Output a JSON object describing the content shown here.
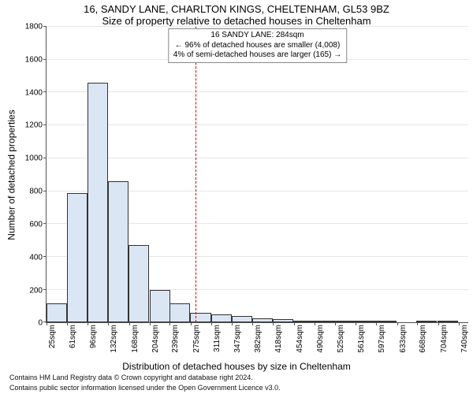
{
  "title1": "16, SANDY LANE, CHARLTON KINGS, CHELTENHAM, GL53 9BZ",
  "title2": "Size of property relative to detached houses in Cheltenham",
  "y_label": "Number of detached properties",
  "x_label": "Distribution of detached houses by size in Cheltenham",
  "footnote1": "Contains HM Land Registry data © Crown copyright and database right 2024.",
  "footnote2": "Contains public sector information licensed under the Open Government Licence v3.0.",
  "annotation": {
    "line1": "16 SANDY LANE: 284sqm",
    "line2": "← 96% of detached houses are smaller (4,008)",
    "line3": "4% of semi-detached houses are larger (165) →"
  },
  "chart": {
    "type": "histogram",
    "ylim": [
      0,
      1800
    ],
    "y_ticks": [
      0,
      200,
      400,
      600,
      800,
      1000,
      1200,
      1400,
      1600,
      1800
    ],
    "x_range_min": 25,
    "x_range_max": 758,
    "x_ticks": [
      25,
      61,
      96,
      132,
      168,
      204,
      239,
      275,
      311,
      347,
      382,
      418,
      454,
      490,
      525,
      561,
      597,
      633,
      668,
      704,
      740
    ],
    "x_tick_suffix": "sqm",
    "bar_color": "#dbe6f4",
    "bar_border": "#333333",
    "grid_color": "#e6e6e6",
    "vline_color": "#cc0000",
    "vline_x": 284,
    "bin_width": 35.7,
    "bins": [
      {
        "start": 25,
        "value": 115
      },
      {
        "start": 61,
        "value": 790
      },
      {
        "start": 96,
        "value": 1460
      },
      {
        "start": 132,
        "value": 860
      },
      {
        "start": 168,
        "value": 470
      },
      {
        "start": 204,
        "value": 200
      },
      {
        "start": 239,
        "value": 115
      },
      {
        "start": 275,
        "value": 60
      },
      {
        "start": 311,
        "value": 50
      },
      {
        "start": 347,
        "value": 40
      },
      {
        "start": 382,
        "value": 25
      },
      {
        "start": 418,
        "value": 20
      },
      {
        "start": 454,
        "value": 10
      },
      {
        "start": 490,
        "value": 5
      },
      {
        "start": 525,
        "value": 3
      },
      {
        "start": 561,
        "value": 5
      },
      {
        "start": 597,
        "value": 10
      },
      {
        "start": 633,
        "value": 0
      },
      {
        "start": 668,
        "value": 3
      },
      {
        "start": 704,
        "value": 3
      },
      {
        "start": 740,
        "value": 0
      }
    ]
  }
}
